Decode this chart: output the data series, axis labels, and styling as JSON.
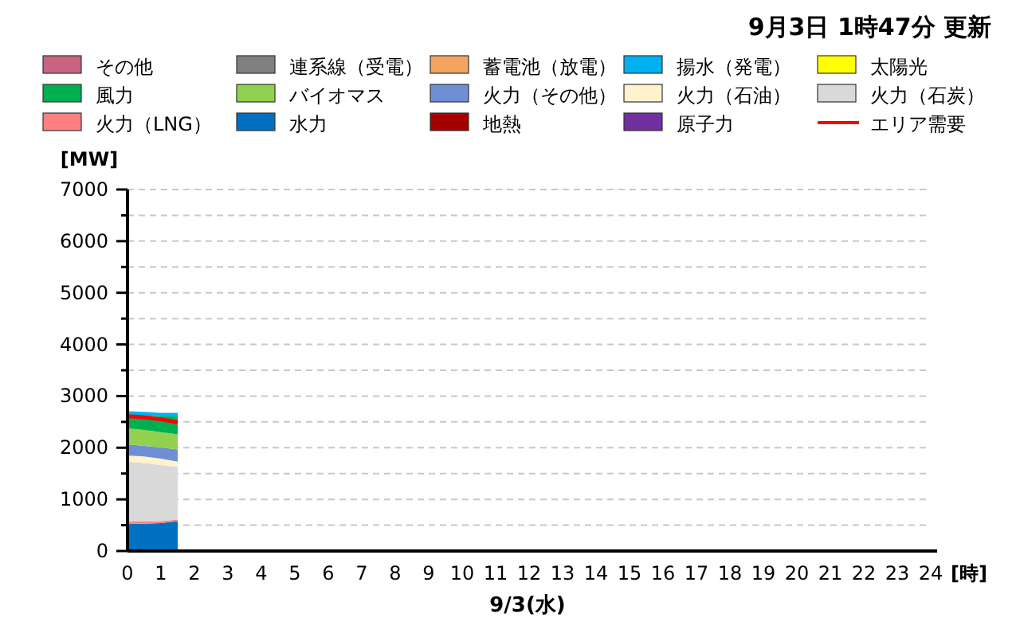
{
  "chart_data": {
    "type": "area",
    "stacked": true,
    "title": "9月3日 1時47分 更新",
    "xlabel": "9/3(水)",
    "ylabel": "[MW]",
    "annotations": [
      "[時]"
    ],
    "x": [
      0,
      0.5,
      1,
      1.5
    ],
    "xlim": [
      0,
      24
    ],
    "xticks": [
      0,
      1,
      2,
      3,
      4,
      5,
      6,
      7,
      8,
      9,
      10,
      11,
      12,
      13,
      14,
      15,
      16,
      17,
      18,
      19,
      20,
      21,
      22,
      23,
      24
    ],
    "ylim": [
      0,
      7000
    ],
    "yticks": [
      0,
      {
        "value": 500,
        "label": null
      },
      1000,
      {
        "value": 1500,
        "label": null
      },
      2000,
      {
        "value": 2500,
        "label": null
      },
      3000,
      {
        "value": 3500,
        "label": null
      },
      4000,
      {
        "value": 4500,
        "label": null
      },
      5000,
      {
        "value": 5500,
        "label": null
      },
      6000,
      {
        "value": 6500,
        "label": null
      },
      7000
    ],
    "grid": "y",
    "legend": "top",
    "series": [
      {
        "name": "原子力",
        "color": "#7030a0",
        "values": [
          null,
          null,
          null,
          null
        ]
      },
      {
        "name": "地熱",
        "color": "#a50000",
        "values": [
          null,
          null,
          null,
          null
        ]
      },
      {
        "name": "水力",
        "color": "#0070c0",
        "values": [
          530,
          530,
          540,
          580
        ]
      },
      {
        "name": "火力（LNG）",
        "color": "#ff8080",
        "values": [
          40,
          40,
          40,
          30
        ]
      },
      {
        "name": "火力（石炭）",
        "color": "#d9d9d9",
        "values": [
          1160,
          1135,
          1085,
          1015
        ]
      },
      {
        "name": "火力（石油）",
        "color": "#fff2cc",
        "values": [
          120,
          125,
          125,
          105
        ]
      },
      {
        "name": "火力（その他）",
        "color": "#6e8fd3",
        "values": [
          215,
          205,
          215,
          235
        ]
      },
      {
        "name": "バイオマス",
        "color": "#92d050",
        "values": [
          310,
          310,
          295,
          295
        ]
      },
      {
        "name": "風力",
        "color": "#00b050",
        "values": [
          260,
          280,
          305,
          345
        ]
      },
      {
        "name": "太陽光",
        "color": "#ffff00",
        "values": [
          null,
          null,
          null,
          null
        ]
      },
      {
        "name": "揚水（発電）",
        "color": "#00b0f0",
        "values": [
          70,
          70,
          70,
          70
        ]
      },
      {
        "name": "蓄電池（放電）",
        "color": "#f4a460",
        "values": [
          null,
          null,
          null,
          null
        ]
      },
      {
        "name": "連系線（受電）",
        "color": "#808080",
        "values": [
          null,
          null,
          null,
          null
        ]
      },
      {
        "name": "その他",
        "color": "#c86482",
        "values": [
          null,
          null,
          null,
          null
        ]
      },
      {
        "name": "エリア需要",
        "type": "line",
        "color": "#ff0000",
        "values": [
          2610,
          2590,
          2550,
          2490
        ]
      }
    ]
  }
}
